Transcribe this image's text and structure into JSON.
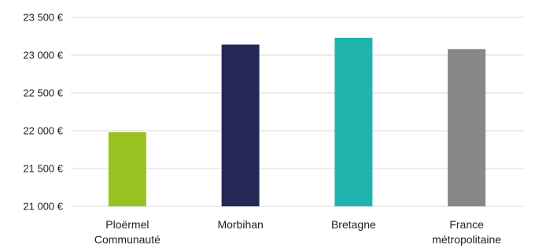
{
  "chart_data": {
    "type": "bar",
    "title": "",
    "xlabel": "",
    "ylabel": "",
    "categories": [
      [
        "Ploërmel",
        "Communauté"
      ],
      [
        "Morbihan"
      ],
      [
        "Bretagne"
      ],
      [
        "France",
        "métropolitaine"
      ]
    ],
    "values": [
      21980,
      23140,
      23230,
      23080
    ],
    "colors": [
      "#97c21f",
      "#232856",
      "#1fb5ae",
      "#888888"
    ],
    "ylim": [
      21000,
      23500
    ],
    "yticks": [
      21000,
      21500,
      22000,
      22500,
      23000,
      23500
    ],
    "ytick_labels": [
      "21 000 €",
      "21 500 €",
      "22 000 €",
      "22 500 €",
      "23 000 €",
      "23 500 €"
    ],
    "grid": true,
    "legend": "none"
  }
}
